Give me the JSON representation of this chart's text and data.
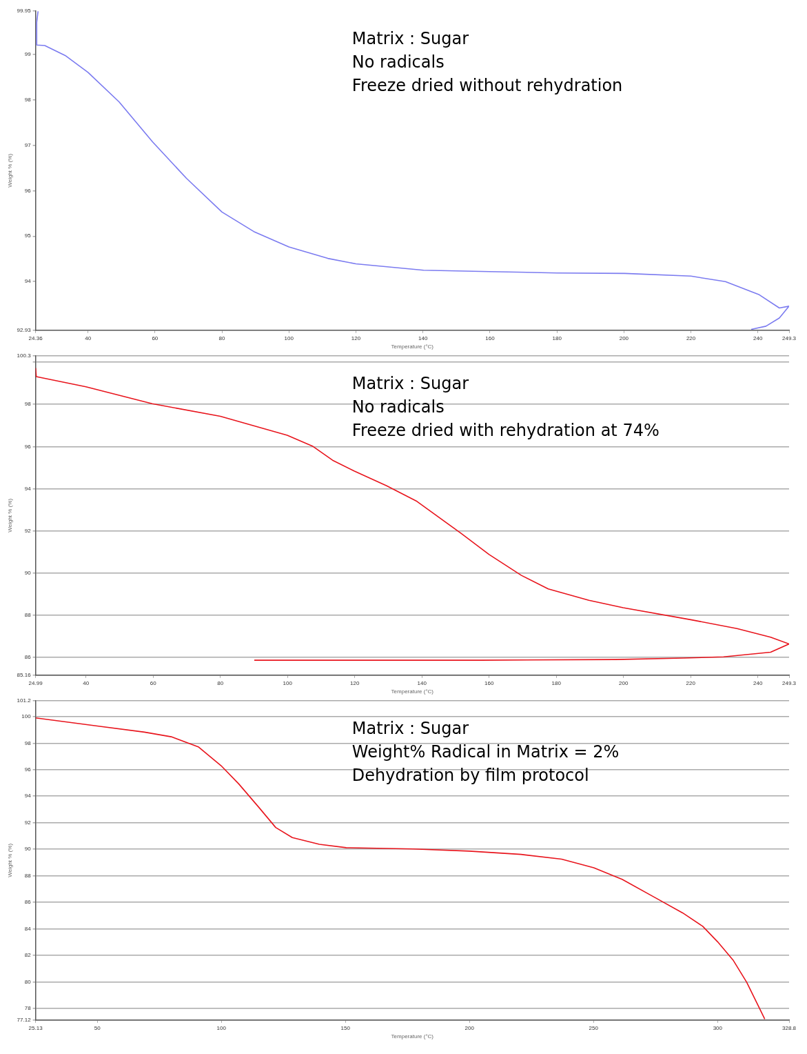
{
  "chart_data": [
    {
      "type": "line",
      "xlabel": "Temperature (°C)",
      "ylabel": "Weight % (%)",
      "annotations": [
        "Matrix : Sugar",
        "No radicals",
        "Freeze dried without rehydration"
      ],
      "xlim": [
        24.36,
        249.3
      ],
      "ylim": [
        92.93,
        99.95
      ],
      "xticks": [
        24.36,
        40,
        60,
        80,
        100,
        120,
        140,
        160,
        180,
        200,
        220,
        240,
        249.3
      ],
      "yticks": [
        92.93,
        94,
        95,
        96,
        97,
        98,
        99,
        99.95
      ],
      "grid": false,
      "marker": "none",
      "series": [
        {
          "color": "#7b7bf0",
          "x": [
            25.1,
            24.7,
            24.7,
            27.1,
            33.2,
            40,
            49.3,
            59.3,
            69.4,
            80,
            89.5,
            100,
            111.6,
            120,
            140.2,
            159.9,
            180,
            200.2,
            220,
            230.3,
            240.4,
            246.4,
            249.3,
            246.4,
            242.4,
            238
          ],
          "values": [
            99.94,
            99.7,
            99.2,
            99.19,
            98.97,
            98.6,
            97.95,
            97.07,
            96.27,
            95.53,
            95.1,
            94.76,
            94.51,
            94.39,
            94.25,
            94.22,
            94.19,
            94.18,
            94.12,
            94.0,
            93.71,
            93.42,
            93.46,
            93.2,
            93.02,
            92.95
          ]
        }
      ]
    },
    {
      "type": "line",
      "xlabel": "Temperature (°C)",
      "ylabel": "Weight % (%)",
      "annotations": [
        "Matrix : Sugar",
        "No radicals",
        "Freeze dried with rehydration at 74%"
      ],
      "xlim": [
        24.99,
        249.3
      ],
      "ylim": [
        85.16,
        100.3
      ],
      "xticks": [
        24.99,
        40,
        60,
        80,
        100,
        120,
        140,
        160,
        180,
        200,
        220,
        240,
        249.3
      ],
      "yticks": [
        85.16,
        86,
        88,
        90,
        92,
        94,
        96,
        98,
        {
          "value": 100,
          "label": null
        },
        100.3
      ],
      "grid": "y",
      "marker": "none",
      "series": [
        {
          "color": "#e8141c",
          "x": [
            25,
            25.2,
            40,
            59.7,
            80,
            89.4,
            99.9,
            107.4,
            113.4,
            119.8,
            129.5,
            138.5,
            151.5,
            160,
            169.6,
            177.6,
            189.7,
            199.9,
            220,
            233.8,
            243.8,
            249.3,
            243.8,
            229.8,
            217.8,
            197.7,
            157.6,
            99.9,
            90.1
          ],
          "values": [
            99.72,
            99.31,
            98.83,
            98.03,
            97.43,
            97.01,
            96.53,
            96.02,
            95.35,
            94.84,
            94.14,
            93.4,
            91.9,
            90.88,
            89.89,
            89.25,
            88.71,
            88.36,
            87.79,
            87.37,
            86.96,
            86.64,
            86.25,
            86.03,
            85.97,
            85.9,
            85.87,
            85.87,
            85.87
          ]
        }
      ]
    },
    {
      "type": "line",
      "xlabel": "Temperature (°C)",
      "ylabel": "Weight % (%)",
      "annotations": [
        "Matrix : Sugar",
        "Weight% Radical in Matrix = 2%",
        "Dehydration by film protocol"
      ],
      "xlim": [
        25.13,
        328.8
      ],
      "ylim": [
        77.12,
        101.2
      ],
      "xticks": [
        25.13,
        50,
        100,
        150,
        200,
        250,
        300,
        328.8
      ],
      "yticks": [
        77.12,
        78,
        80,
        82,
        84,
        86,
        88,
        90,
        92,
        94,
        96,
        98,
        100,
        101.2
      ],
      "grid": "y",
      "marker": "none",
      "series": [
        {
          "color": "#e8141c",
          "x": [
            25.13,
            50,
            69,
            79.8,
            90.7,
            99.9,
            107,
            115.1,
            121.9,
            128.6,
            139.5,
            150.3,
            177.4,
            199.9,
            220.8,
            237.1,
            250.1,
            261.5,
            275.1,
            285.9,
            294,
            300,
            306.2,
            311.7,
            315.7,
            319
          ],
          "values": [
            99.9,
            99.29,
            98.83,
            98.48,
            97.72,
            96.3,
            94.93,
            93.16,
            91.64,
            90.88,
            90.37,
            90.12,
            90.02,
            89.86,
            89.61,
            89.25,
            88.6,
            87.73,
            86.32,
            85.2,
            84.19,
            83.02,
            81.65,
            79.98,
            78.46,
            77.19
          ]
        }
      ]
    }
  ]
}
